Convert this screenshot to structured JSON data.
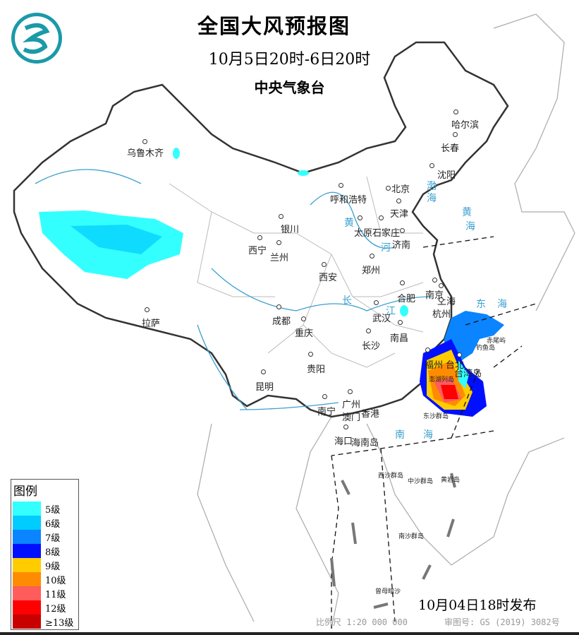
{
  "header": {
    "title": "全国大风预报图",
    "period": "10月5日20时-6日20时",
    "issuer": "中央气象台"
  },
  "cities": [
    "乌鲁木齐",
    "哈尔滨",
    "长春",
    "沈阳",
    "北京",
    "呼和浩特",
    "天津",
    "银川",
    "太原",
    "石家庄",
    "济南",
    "西宁",
    "兰州",
    "郑州",
    "西安",
    "合肥",
    "南京",
    "上海",
    "杭州",
    "成都",
    "武汉",
    "拉萨",
    "重庆",
    "南昌",
    "长沙",
    "福州",
    "台北",
    "贵阳",
    "昆明",
    "广州",
    "南宁",
    "澳门",
    "香港",
    "海口"
  ],
  "places": [
    "台湾岛",
    "澎湖列岛",
    "东沙群岛",
    "钓鱼岛",
    "赤尾屿",
    "海南岛",
    "西沙群岛",
    "中沙群岛",
    "黄岩岛",
    "南沙群岛",
    "曾母暗沙"
  ],
  "seas": [
    "渤",
    "海",
    "黄",
    "海",
    "东",
    "海",
    "南",
    "海",
    "黄",
    "河",
    "长",
    "江"
  ],
  "legend": {
    "title": "图例",
    "items": [
      {
        "label": "5级",
        "color": "#33ffff"
      },
      {
        "label": "6级",
        "color": "#00ccff"
      },
      {
        "label": "7级",
        "color": "#0a84ff"
      },
      {
        "label": "8级",
        "color": "#0010ff"
      },
      {
        "label": "9级",
        "color": "#ffcc00"
      },
      {
        "label": "10级",
        "color": "#ff8c00"
      },
      {
        "label": "11级",
        "color": "#ff5c5c"
      },
      {
        "label": "12级",
        "color": "#ff0000"
      },
      {
        "label": "≥13级",
        "color": "#c80000"
      }
    ]
  },
  "footer": {
    "issued": "10月04日18时发布",
    "scale": "比例尺 1:20 000 000",
    "review": "审图号: GS (2019) 3082号"
  },
  "logo_text": "气"
}
